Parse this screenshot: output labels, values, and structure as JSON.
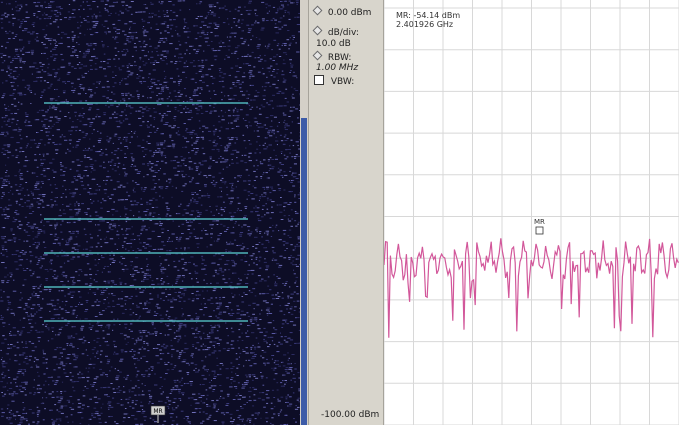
{
  "control_panel": {
    "ref_level": "0.00 dBm",
    "db_per_div_label": "dB/div:",
    "db_per_div_value": "10.0 dB",
    "rbw_label": "RBW:",
    "rbw_value": "1.00 MHz",
    "vbw_label": "VBW:",
    "bottom_level": "-100.00 dBm"
  },
  "marker": {
    "label": "MR",
    "power_readout": "MR: -54.14 dBm",
    "frequency_readout": "2.401926 GHz"
  },
  "spectrogram": {
    "marker_label": "MR"
  },
  "colors": {
    "spectrogram_background": "#0d0d26",
    "trace": "#d2579a",
    "grid": "#d8d8d8",
    "panel": "#d8d5cc",
    "scrollbar_thumb": "#3c5ba8",
    "horizontal_lines": "#4fb3b8"
  },
  "chart_data": {
    "type": "line",
    "ylim": [
      -100,
      0
    ],
    "grid": true,
    "trace_level_range_dbm": [
      -70,
      -55
    ]
  }
}
